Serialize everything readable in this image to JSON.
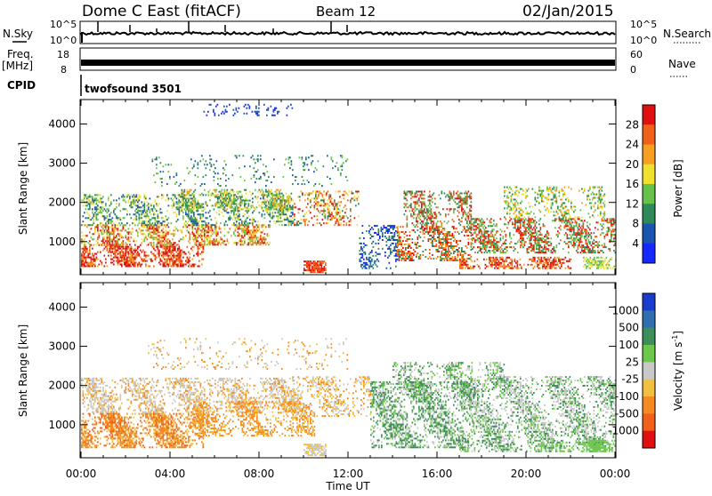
{
  "header": {
    "station": "Dome C East (fitACF)",
    "beam": "Beam 12",
    "date": "02/Jan/2015"
  },
  "top_panels": {
    "nsky_label": "N.Sky",
    "nsky_ticks": [
      "10^5",
      "10^0"
    ],
    "nsearch_label": "N.Search",
    "nsearch_ticks": [
      "10^5",
      "10^0"
    ],
    "freq_label": "Freq.",
    "freq_unit": "[MHz]",
    "freq_ticks": [
      "18",
      "8"
    ],
    "nave_label": "Nave",
    "nave_ticks": [
      "60",
      "0"
    ],
    "cpid_label": "CPID",
    "cpid_value": "twofsound 3501"
  },
  "chart_data": [
    {
      "type": "heatmap",
      "quantity": "power",
      "xlabel": "Time UT",
      "ylabel": "Slant Range [km]",
      "x_ticks": [
        "00:00",
        "04:00",
        "08:00",
        "12:00",
        "16:00",
        "20:00",
        "00:00"
      ],
      "xlim_hours": [
        0,
        24
      ],
      "y_ticks": [
        1000,
        2000,
        3000,
        4000
      ],
      "ylim": [
        180,
        4600
      ],
      "colorbar_label": "Power [dB]",
      "colorbar_ticks": [
        4,
        8,
        12,
        16,
        20,
        24,
        28
      ],
      "colorbar_range": [
        0,
        32
      ],
      "colors": [
        "#1428ff",
        "#1a55b0",
        "#2e8b57",
        "#66c24a",
        "#f0e030",
        "#f5a020",
        "#f06018",
        "#e01010"
      ]
    },
    {
      "type": "heatmap",
      "quantity": "velocity",
      "xlabel": "Time UT",
      "ylabel": "Slant Range [km]",
      "x_ticks": [
        "00:00",
        "04:00",
        "08:00",
        "12:00",
        "16:00",
        "20:00",
        "00:00"
      ],
      "xlim_hours": [
        0,
        24
      ],
      "y_ticks": [
        1000,
        2000,
        3000,
        4000
      ],
      "ylim": [
        180,
        4600
      ],
      "colorbar_label": "Velocity [m s^-1]",
      "colorbar_ticks": [
        "1000",
        "500",
        "100",
        "25",
        "-25",
        "-100",
        "-500",
        "-1000"
      ],
      "colors": [
        "#1a3ccc",
        "#2f6fb0",
        "#3d8f5a",
        "#6cc84a",
        "#c8c8c8",
        "#f2c040",
        "#f58a20",
        "#f06018",
        "#e01010"
      ]
    }
  ]
}
